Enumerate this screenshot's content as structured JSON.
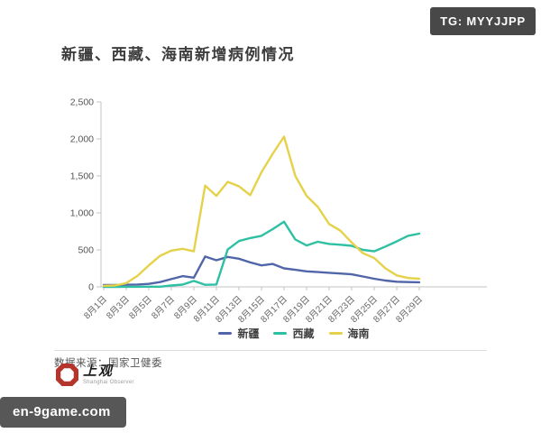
{
  "badge": {
    "label": "TG: MYYJJPP"
  },
  "title": "新疆、西藏、海南新增病例情况",
  "chart_data": {
    "type": "line",
    "categories": [
      "8月1日",
      "8月2日",
      "8月3日",
      "8月4日",
      "8月5日",
      "8月6日",
      "8月7日",
      "8月8日",
      "8月9日",
      "8月10日",
      "8月11日",
      "8月12日",
      "8月13日",
      "8月14日",
      "8月15日",
      "8月16日",
      "8月17日",
      "8月18日",
      "8月19日",
      "8月20日",
      "8月21日",
      "8月22日",
      "8月23日",
      "8月24日",
      "8月25日",
      "8月26日",
      "8月27日",
      "8月28日",
      "8月29日"
    ],
    "x_ticks_every": 2,
    "series": [
      {
        "name": "新疆",
        "slug": "xinjiang",
        "color": "#5166a8",
        "values": [
          25,
          25,
          28,
          32,
          40,
          65,
          105,
          145,
          125,
          410,
          360,
          405,
          380,
          330,
          290,
          310,
          250,
          230,
          210,
          200,
          190,
          180,
          170,
          140,
          110,
          85,
          70,
          65,
          62
        ]
      },
      {
        "name": "西藏",
        "slug": "tibet",
        "color": "#2fbfa3",
        "values": [
          0,
          0,
          1,
          1,
          2,
          3,
          18,
          30,
          80,
          28,
          32,
          505,
          620,
          660,
          690,
          780,
          880,
          640,
          560,
          610,
          580,
          570,
          555,
          500,
          480,
          545,
          615,
          690,
          720
        ]
      },
      {
        "name": "海南",
        "slug": "hainan",
        "color": "#e6d14a",
        "values": [
          15,
          18,
          50,
          150,
          290,
          420,
          490,
          515,
          480,
          1370,
          1230,
          1420,
          1360,
          1240,
          1550,
          1800,
          2030,
          1500,
          1230,
          1080,
          850,
          760,
          600,
          455,
          390,
          250,
          155,
          120,
          110
        ]
      }
    ],
    "ylim": [
      0,
      2500
    ],
    "yticks": [
      0,
      500,
      1000,
      1500,
      2000,
      2500
    ],
    "grid": false,
    "legend_position": "bottom"
  },
  "source": {
    "label": "数据来源：国家卫健委"
  },
  "logo": {
    "name": "上观",
    "subtitle": "Shanghai Observer",
    "color": "#b5342c"
  },
  "watermark": {
    "label": "en-9game.com"
  }
}
